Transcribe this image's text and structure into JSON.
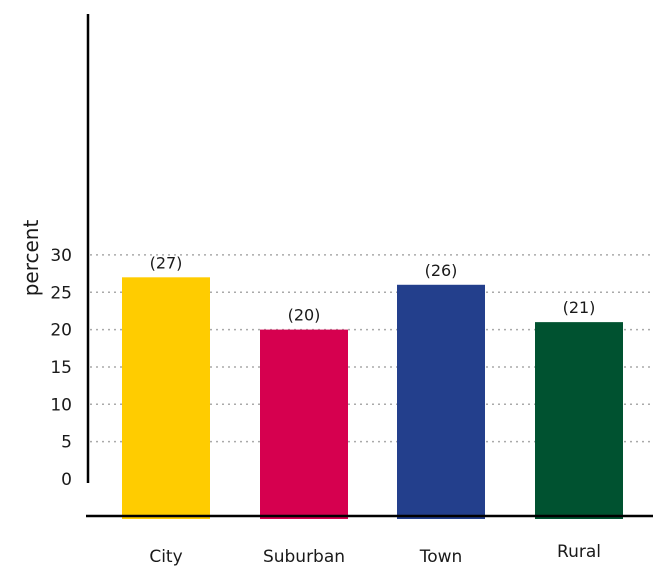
{
  "chart_data": {
    "type": "bar",
    "categories": [
      "City",
      "Suburban",
      "Town",
      "Rural"
    ],
    "values": [
      27,
      20,
      26,
      21
    ],
    "data_labels": [
      "(27)",
      "(20)",
      "(26)",
      "(21)"
    ],
    "colors": [
      "#ffcc00",
      "#d6004f",
      "#233f8c",
      "#005230"
    ],
    "ylabel": "percent",
    "yticks": [
      0,
      5,
      10,
      15,
      20,
      25,
      30
    ],
    "ylim": [
      0,
      30
    ],
    "grid": "horizontal-dotted",
    "gridline_color": "#aaaaaa"
  }
}
